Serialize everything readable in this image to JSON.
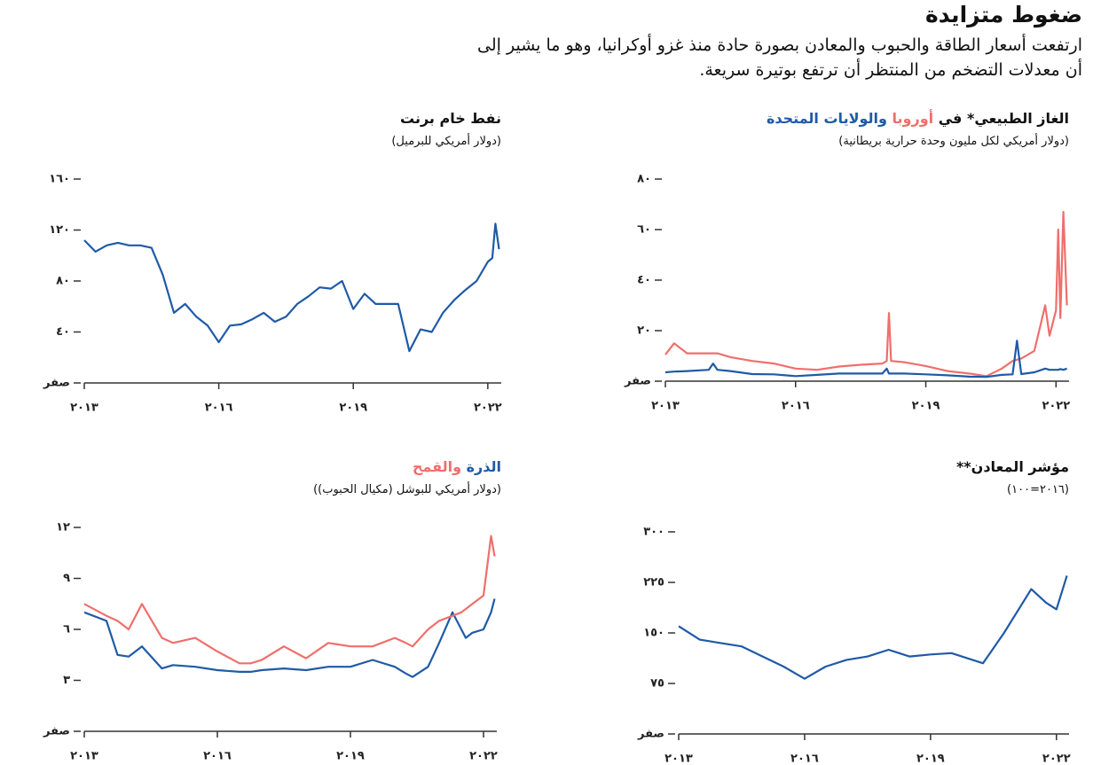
{
  "title": "ضغوط متزايدة",
  "subtitle": [
    "ارتفعت أسعار الطاقة والحبوب والمعادن بصورة حادة منذ غزو أوكرانيا، وهو ما يشير إلى",
    "أن معدلات التضخم من المنتظر أن ترتفع بوتيرة سريعة."
  ],
  "chart_data": [
    {
      "type": "line",
      "title": "نفط خام برنت",
      "subtitle": "(دولار أمريكي للبرميل)",
      "x": [
        2013,
        2013.25,
        2013.5,
        2013.75,
        2014,
        2014.25,
        2014.5,
        2014.75,
        2015,
        2015.25,
        2015.5,
        2015.75,
        2016,
        2016.25,
        2016.5,
        2016.75,
        2017,
        2017.25,
        2017.5,
        2017.75,
        2018,
        2018.25,
        2018.5,
        2018.75,
        2019,
        2019.25,
        2019.5,
        2019.75,
        2020,
        2020.25,
        2020.5,
        2020.75,
        2021,
        2021.25,
        2021.5,
        2021.75,
        2022,
        2022.1,
        2022.17,
        2022.25
      ],
      "series": [
        {
          "color": "#1f5aa6",
          "values": [
            112,
            103,
            108,
            110,
            108,
            108,
            106,
            85,
            55,
            62,
            52,
            45,
            32,
            45,
            46,
            50,
            55,
            48,
            52,
            62,
            68,
            75,
            74,
            80,
            58,
            70,
            62,
            62,
            62,
            25,
            42,
            40,
            55,
            65,
            73,
            80,
            95,
            98,
            125,
            105
          ]
        }
      ],
      "xlim": [
        2013,
        2022.3
      ],
      "xticks": [
        {
          "value": 2013,
          "label": "٢٠١٣"
        },
        {
          "value": 2016,
          "label": "٢٠١٦"
        },
        {
          "value": 2019,
          "label": "٢٠١٩"
        },
        {
          "value": 2022,
          "label": "٢٠٢٢"
        }
      ],
      "ylim": [
        0,
        160
      ],
      "yticks": [
        {
          "value": 0,
          "label": "صفر"
        },
        {
          "value": 40,
          "label": "٤٠"
        },
        {
          "value": 80,
          "label": "٨٠"
        },
        {
          "value": 120,
          "label": "١٢٠"
        },
        {
          "value": 160,
          "label": "١٦٠"
        }
      ]
    },
    {
      "type": "line",
      "title": "الغاز الطبيعي* في",
      "subtitle": "(دولار أمريكي لكل مليون وحدة حرارية بريطانية)",
      "x": [
        2013,
        2013.2,
        2013.5,
        2014,
        2014.1,
        2014.2,
        2014.5,
        2015,
        2015.5,
        2016,
        2016.5,
        2017,
        2017.5,
        2018,
        2018.1,
        2018.15,
        2018.2,
        2018.5,
        2019,
        2019.5,
        2020,
        2020.4,
        2020.75,
        2021,
        2021.1,
        2021.2,
        2021.5,
        2021.75,
        2021.85,
        2022,
        2022.05,
        2022.1,
        2022.17,
        2022.25
      ],
      "series": [
        {
          "name": "أوروبا",
          "color": "#ef6f6c",
          "values": [
            10.5,
            15,
            11,
            11,
            11,
            11,
            9.5,
            8,
            7,
            5,
            4.5,
            5.8,
            6.5,
            7,
            8,
            27,
            8,
            7.5,
            6,
            4,
            3,
            2,
            5,
            8,
            8.5,
            9,
            12,
            30,
            18,
            28,
            60,
            25,
            67,
            30
          ]
        },
        {
          "name": "والولايات المتحدة",
          "color": "#1f5aa6",
          "values": [
            3.5,
            3.8,
            4,
            4.5,
            7,
            4.5,
            4,
            2.8,
            2.7,
            2,
            2.5,
            3,
            3,
            3,
            5,
            3,
            3,
            3,
            2.7,
            2.3,
            1.8,
            1.7,
            2.5,
            2.7,
            16,
            2.8,
            3.5,
            5,
            4.5,
            4.5,
            4.5,
            4.8,
            4.5,
            5
          ]
        }
      ],
      "xlim": [
        2013,
        2022.3
      ],
      "xticks": [
        {
          "value": 2013,
          "label": "٢٠١٣"
        },
        {
          "value": 2016,
          "label": "٢٠١٦"
        },
        {
          "value": 2019,
          "label": "٢٠١٩"
        },
        {
          "value": 2022,
          "label": "٢٠٢٢"
        }
      ],
      "ylim": [
        0,
        80
      ],
      "yticks": [
        {
          "value": 0,
          "label": "صفر"
        },
        {
          "value": 20,
          "label": "٢٠"
        },
        {
          "value": 40,
          "label": "٤٠"
        },
        {
          "value": 60,
          "label": "٦٠"
        },
        {
          "value": 80,
          "label": "٨٠"
        }
      ]
    },
    {
      "type": "line",
      "subtitle": "(دولار أمريكي للبوشل (مكيال الحبوب))",
      "x": [
        2013,
        2013.5,
        2013.75,
        2014,
        2014.3,
        2014.75,
        2015,
        2015.5,
        2016,
        2016.5,
        2016.75,
        2017,
        2017.5,
        2018,
        2018.5,
        2019,
        2019.5,
        2020,
        2020.25,
        2020.4,
        2020.75,
        2021,
        2021.3,
        2021.5,
        2021.6,
        2021.75,
        2022,
        2022.17,
        2022.25
      ],
      "series": [
        {
          "name": "الذرة",
          "color": "#1f5aa6",
          "values": [
            7,
            6.5,
            4.5,
            4.4,
            5,
            3.7,
            3.9,
            3.8,
            3.6,
            3.5,
            3.5,
            3.6,
            3.7,
            3.6,
            3.8,
            3.8,
            4.2,
            3.8,
            3.4,
            3.2,
            3.8,
            5.2,
            7,
            6,
            5.5,
            5.8,
            6,
            7,
            7.8
          ]
        },
        {
          "name": "والقمح",
          "color": "#ef6f6c",
          "values": [
            7.5,
            6.8,
            6.5,
            6,
            7.5,
            5.5,
            5.2,
            5.5,
            4.7,
            4,
            4,
            4.2,
            5,
            4.3,
            5.2,
            5,
            5,
            5.5,
            5.2,
            5,
            6,
            6.5,
            6.8,
            7,
            7.2,
            7.5,
            8,
            11.5,
            10.3
          ]
        }
      ],
      "xlim": [
        2013,
        2022.3
      ],
      "xticks": [
        {
          "value": 2013,
          "label": "٢٠١٣"
        },
        {
          "value": 2016,
          "label": "٢٠١٦"
        },
        {
          "value": 2019,
          "label": "٢٠١٩"
        },
        {
          "value": 2022,
          "label": "٢٠٢٢"
        }
      ],
      "ylim": [
        0,
        12
      ],
      "yticks": [
        {
          "value": 0,
          "label": "صفر"
        },
        {
          "value": 3,
          "label": "٣"
        },
        {
          "value": 6,
          "label": "٦"
        },
        {
          "value": 9,
          "label": "٩"
        },
        {
          "value": 12,
          "label": "١٢"
        }
      ]
    },
    {
      "type": "line",
      "title": "مؤشر المعادن**",
      "subtitle": "(٢٠١٦=١٠٠)",
      "x": [
        2013,
        2013.5,
        2014,
        2014.5,
        2015,
        2015.5,
        2016,
        2016.5,
        2017,
        2017.5,
        2018,
        2018.5,
        2019,
        2019.5,
        2020,
        2020.25,
        2020.75,
        2021,
        2021.4,
        2021.75,
        2022,
        2022.25
      ],
      "series": [
        {
          "color": "#1f5aa6",
          "values": [
            160,
            140,
            135,
            130,
            115,
            100,
            82,
            100,
            110,
            115,
            125,
            115,
            118,
            120,
            110,
            105,
            150,
            175,
            215,
            195,
            185,
            235
          ]
        }
      ],
      "xlim": [
        2013,
        2022.3
      ],
      "xticks": [
        {
          "value": 2013,
          "label": "٢٠١٣"
        },
        {
          "value": 2016,
          "label": "٢٠١٦"
        },
        {
          "value": 2019,
          "label": "٢٠١٩"
        },
        {
          "value": 2022,
          "label": "٢٠٢٢"
        }
      ],
      "ylim": [
        0,
        300
      ],
      "yticks": [
        {
          "value": 0,
          "label": "صفر"
        },
        {
          "value": 75,
          "label": "٧٥"
        },
        {
          "value": 150,
          "label": "١٥٠"
        },
        {
          "value": 225,
          "label": "٢٢٥"
        },
        {
          "value": 300,
          "label": "٣٠٠"
        }
      ]
    }
  ]
}
